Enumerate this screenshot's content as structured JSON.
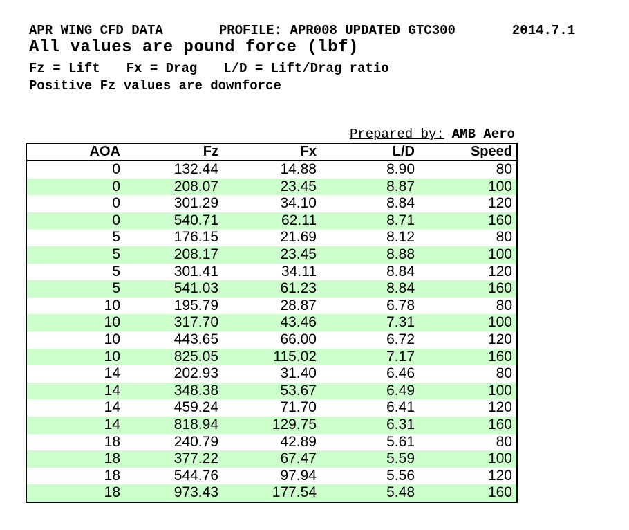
{
  "header": {
    "title": "APR WING CFD DATA",
    "profile": "PROFILE: APR008 UPDATED GTC300",
    "date": "2014.7.1",
    "subtitle": "All values are pound force (lbf)",
    "legend": {
      "fz": "Fz = Lift",
      "fx": "Fx = Drag",
      "ld": "L/D = Lift/Drag ratio"
    },
    "note": "Positive Fz values are downforce"
  },
  "prepared_by": {
    "label": "Prepared by:",
    "value": "AMB Aero"
  },
  "table": {
    "columns": [
      "AOA",
      "Fz",
      "Fx",
      "L/D",
      "Speed"
    ],
    "rows": [
      [
        "0",
        "132.44",
        "14.88",
        "8.90",
        "80"
      ],
      [
        "0",
        "208.07",
        "23.45",
        "8.87",
        "100"
      ],
      [
        "0",
        "301.29",
        "34.10",
        "8.84",
        "120"
      ],
      [
        "0",
        "540.71",
        "62.11",
        "8.71",
        "160"
      ],
      [
        "5",
        "176.15",
        "21.69",
        "8.12",
        "80"
      ],
      [
        "5",
        "208.17",
        "23.45",
        "8.88",
        "100"
      ],
      [
        "5",
        "301.41",
        "34.11",
        "8.84",
        "120"
      ],
      [
        "5",
        "541.03",
        "61.23",
        "8.84",
        "160"
      ],
      [
        "10",
        "195.79",
        "28.87",
        "6.78",
        "80"
      ],
      [
        "10",
        "317.70",
        "43.46",
        "7.31",
        "100"
      ],
      [
        "10",
        "443.65",
        "66.00",
        "6.72",
        "120"
      ],
      [
        "10",
        "825.05",
        "115.02",
        "7.17",
        "160"
      ],
      [
        "14",
        "202.93",
        "31.40",
        "6.46",
        "80"
      ],
      [
        "14",
        "348.38",
        "53.67",
        "6.49",
        "100"
      ],
      [
        "14",
        "459.24",
        "71.70",
        "6.41",
        "120"
      ],
      [
        "14",
        "818.94",
        "129.75",
        "6.31",
        "160"
      ],
      [
        "18",
        "240.79",
        "42.89",
        "5.61",
        "80"
      ],
      [
        "18",
        "377.22",
        "67.47",
        "5.59",
        "100"
      ],
      [
        "18",
        "544.76",
        "97.94",
        "5.56",
        "120"
      ],
      [
        "18",
        "973.43",
        "177.54",
        "5.48",
        "160"
      ]
    ]
  },
  "colors": {
    "alt_row_green": "#ccffcc",
    "border": "#000000",
    "text": "#000000"
  }
}
